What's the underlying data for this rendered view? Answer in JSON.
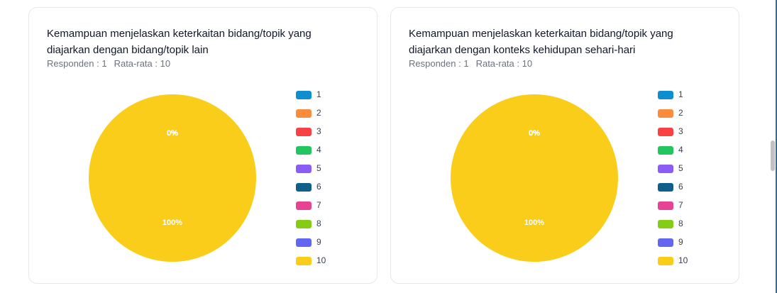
{
  "chart_data": [
    {
      "type": "pie",
      "title": "Kemampuan menjelaskan keterkaitan bidang/topik yang diajarkan dengan bidang/topik lain",
      "subtitles": [
        "Responden : 1",
        "Rata-rata : 10"
      ],
      "categories": [
        "1",
        "2",
        "3",
        "4",
        "5",
        "6",
        "7",
        "8",
        "9",
        "10"
      ],
      "values": [
        0,
        0,
        0,
        0,
        0,
        0,
        0,
        0,
        0,
        100
      ],
      "value_labels": [
        "0%",
        "0%",
        "0%",
        "0%",
        "0%",
        "0%",
        "0%",
        "0%",
        "0%",
        "100%"
      ],
      "colors": [
        "#0d8ecf",
        "#fb8c3c",
        "#f94144",
        "#22c55e",
        "#8b5cf6",
        "#0f5f8a",
        "#e84393",
        "#84cc16",
        "#6366f1",
        "#f9cd1a"
      ],
      "legend": "right"
    },
    {
      "type": "pie",
      "title": "Kemampuan menjelaskan keterkaitan bidang/topik yang diajarkan dengan konteks kehidupan sehari-hari",
      "subtitles": [
        "Responden : 1",
        "Rata-rata : 10"
      ],
      "categories": [
        "1",
        "2",
        "3",
        "4",
        "5",
        "6",
        "7",
        "8",
        "9",
        "10"
      ],
      "values": [
        0,
        0,
        0,
        0,
        0,
        0,
        0,
        0,
        0,
        100
      ],
      "value_labels": [
        "0%",
        "0%",
        "0%",
        "0%",
        "0%",
        "0%",
        "0%",
        "0%",
        "0%",
        "100%"
      ],
      "colors": [
        "#0d8ecf",
        "#fb8c3c",
        "#f94144",
        "#22c55e",
        "#8b5cf6",
        "#0f5f8a",
        "#e84393",
        "#84cc16",
        "#6366f1",
        "#f9cd1a"
      ],
      "legend": "right"
    }
  ]
}
